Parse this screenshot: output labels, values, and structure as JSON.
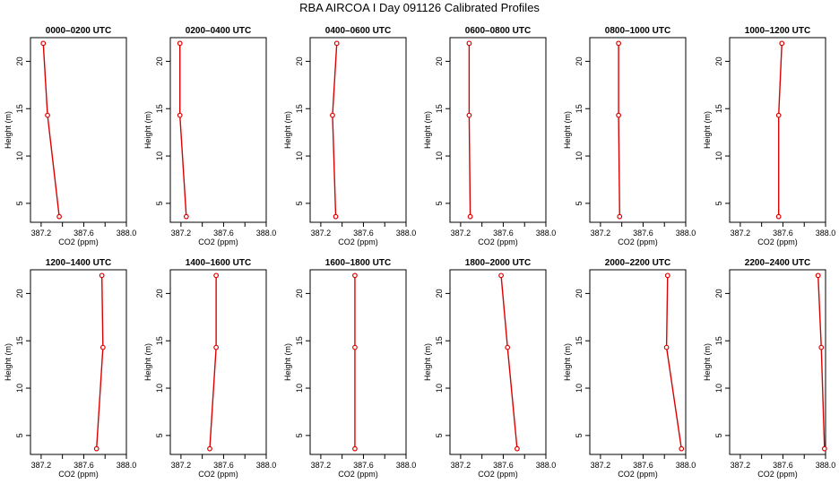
{
  "title": "RBA AIRCOA I  Day 091126  Calibrated Profiles",
  "chart_data": {
    "type": "line",
    "xlabel": "CO2 (ppm)",
    "ylabel": "Height (m)",
    "xlim": [
      387.1,
      388.0
    ],
    "ylim": [
      3.0,
      22.5
    ],
    "xticks": [
      387.2,
      387.4,
      387.6,
      387.8,
      388.0
    ],
    "xtick_labels": [
      "387.2",
      "",
      "387.6",
      "",
      "388.0"
    ],
    "yticks": [
      5,
      10,
      15,
      20
    ],
    "yticks_row2": [
      5,
      10,
      15,
      20
    ],
    "heights": [
      21.9,
      14.3,
      3.6
    ],
    "color": "#dd0000",
    "grid": false,
    "panels": [
      {
        "title": "0000–0200 UTC",
        "values": [
          387.22,
          387.26,
          387.37
        ]
      },
      {
        "title": "0200–0400 UTC",
        "values": [
          387.19,
          387.19,
          387.25
        ]
      },
      {
        "title": "0400–0600 UTC",
        "values": [
          387.35,
          387.31,
          387.34
        ]
      },
      {
        "title": "0600–0800 UTC",
        "values": [
          387.28,
          387.28,
          387.29
        ]
      },
      {
        "title": "0800–1000 UTC",
        "values": [
          387.37,
          387.37,
          387.38
        ]
      },
      {
        "title": "1000–1200 UTC",
        "values": [
          387.59,
          387.56,
          387.56
        ]
      },
      {
        "title": "1200–1400 UTC",
        "values": [
          387.77,
          387.78,
          387.72
        ]
      },
      {
        "title": "1400–1600 UTC",
        "values": [
          387.53,
          387.53,
          387.47
        ]
      },
      {
        "title": "1600–1800 UTC",
        "values": [
          387.52,
          387.52,
          387.52
        ]
      },
      {
        "title": "1800–2000 UTC",
        "values": [
          387.58,
          387.64,
          387.73
        ]
      },
      {
        "title": "2000–2200 UTC",
        "values": [
          387.83,
          387.82,
          387.96
        ]
      },
      {
        "title": "2200–2400 UTC",
        "values": [
          387.93,
          387.96,
          387.99
        ]
      }
    ]
  }
}
